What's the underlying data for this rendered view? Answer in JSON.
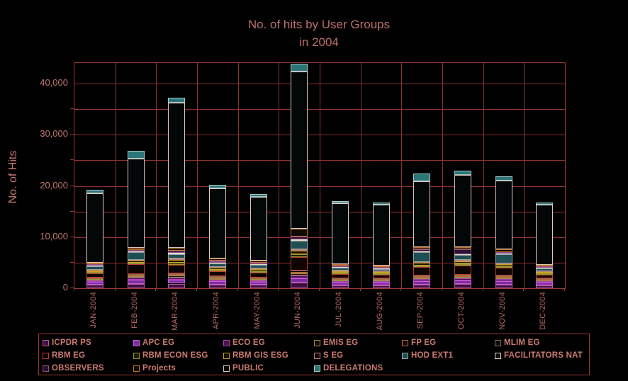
{
  "window": {
    "background": "#000000"
  },
  "title": {
    "line1": "No. of hits by User Groups",
    "line2": "in 2004"
  },
  "y_axis": {
    "title": "No. of Hits",
    "labeled_ticks": [
      {
        "value": 0,
        "label": "0"
      },
      {
        "value": 10000,
        "label": "10,000"
      },
      {
        "value": 20000,
        "label": "20,000"
      },
      {
        "value": 30000,
        "label": "30,000"
      },
      {
        "value": 40000,
        "label": "40,000"
      }
    ],
    "minor_tick_interval": 5000
  },
  "colors": {
    "background": "#000000",
    "grid": "#8f3331",
    "frame": "#9c3a36",
    "axis_text": "#c1766f",
    "title_text": "#bb6f6a",
    "legend_text": "#ca7a70"
  },
  "legend": {
    "columns": 6,
    "position": "bottom"
  },
  "chart_data": {
    "type": "bar",
    "stacked": true,
    "title": "No. of hits by User Groups in 2004",
    "xlabel": "",
    "ylabel": "No. of Hits",
    "ylim": [
      0,
      44000
    ],
    "gridline_interval": 5000,
    "grid": true,
    "legend_position": "bottom",
    "categories": [
      "JAN-2004",
      "FEB-2004",
      "MAR-2004",
      "APR-2004",
      "MAY-2004",
      "JUN-2004",
      "JUL-2004",
      "AUG-2004",
      "SEP-2004",
      "OCT-2004",
      "NOV-2004",
      "DEC-2004"
    ],
    "totals": [
      19200,
      26800,
      37200,
      20200,
      18400,
      43800,
      17000,
      16800,
      22400,
      23000,
      21800,
      16700
    ],
    "series": [
      {
        "name": "ICPDR PS",
        "fill": "#3d1040",
        "border": "#b05898",
        "values": [
          650,
          800,
          900,
          700,
          650,
          1100,
          600,
          600,
          750,
          800,
          750,
          600
        ]
      },
      {
        "name": "APC EG",
        "fill": "#7d2ea0",
        "border": "#c95fd6",
        "values": [
          550,
          900,
          800,
          650,
          600,
          900,
          550,
          500,
          700,
          750,
          700,
          500
        ]
      },
      {
        "name": "ECO EG",
        "fill": "#4a1150",
        "border": "#aa3fae",
        "values": [
          300,
          350,
          400,
          350,
          300,
          500,
          280,
          270,
          350,
          380,
          350,
          260
        ]
      },
      {
        "name": "EMIS EG",
        "fill": "#151004",
        "border": "#9c8a4a",
        "values": [
          250,
          300,
          350,
          280,
          260,
          400,
          240,
          230,
          300,
          320,
          300,
          220
        ]
      },
      {
        "name": "FP EG",
        "fill": "#120803",
        "border": "#b06a36",
        "values": [
          200,
          250,
          300,
          220,
          200,
          350,
          190,
          180,
          240,
          250,
          230,
          180
        ]
      },
      {
        "name": "MLIM EG",
        "fill": "#0b0b0b",
        "border": "#8a6a62",
        "values": [
          120,
          150,
          200,
          140,
          130,
          250,
          120,
          110,
          150,
          160,
          150,
          110
        ]
      },
      {
        "name": "RBM EG",
        "fill": "#0e0404",
        "border": "#c03a34",
        "values": [
          850,
          1900,
          1600,
          1000,
          950,
          2600,
          800,
          750,
          1700,
          1800,
          1500,
          800
        ]
      },
      {
        "name": "RBM ECON ESG",
        "fill": "#1c1c06",
        "border": "#96962e",
        "values": [
          230,
          300,
          400,
          260,
          240,
          500,
          220,
          210,
          300,
          320,
          300,
          210
        ]
      },
      {
        "name": "RBM GIS ESG",
        "fill": "#181203",
        "border": "#c9a02e",
        "values": [
          320,
          450,
          600,
          380,
          350,
          700,
          300,
          290,
          450,
          480,
          430,
          300
        ]
      },
      {
        "name": "S EG",
        "fill": "#0d0606",
        "border": "#c08070",
        "values": [
          180,
          200,
          250,
          200,
          180,
          300,
          160,
          150,
          200,
          210,
          200,
          150
        ]
      },
      {
        "name": "HOD EXT1",
        "fill": "#1f4e54",
        "border": "#93a5a5",
        "values": [
          600,
          1400,
          900,
          700,
          650,
          1700,
          550,
          500,
          1900,
          1000,
          1700,
          600
        ]
      },
      {
        "name": "FACILITATORS NAT",
        "fill": "#0b0b0b",
        "border": "#e8d8c8",
        "values": [
          130,
          150,
          200,
          150,
          140,
          250,
          120,
          110,
          170,
          180,
          160,
          120
        ]
      },
      {
        "name": "OBSERVERS",
        "fill": "#2c1232",
        "border": "#8e4f86",
        "values": [
          280,
          350,
          450,
          320,
          300,
          600,
          260,
          250,
          380,
          900,
          350,
          250
        ]
      },
      {
        "name": "Projects",
        "fill": "#100a03",
        "border": "#c1742c",
        "values": [
          380,
          450,
          500,
          420,
          400,
          1500,
          350,
          340,
          450,
          480,
          430,
          330
        ]
      },
      {
        "name": "PUBLIC",
        "fill": "#040707",
        "border": "#ddc6c0",
        "values": [
          13560,
          17350,
          28450,
          13730,
          12550,
          30700,
          11860,
          11810,
          12860,
          14170,
          13450,
          11670
        ]
      },
      {
        "name": "DELEGATIONS",
        "fill": "#2c7578",
        "border": "#a9c6c6",
        "values": [
          600,
          1500,
          900,
          700,
          500,
          1450,
          400,
          500,
          1500,
          800,
          800,
          400
        ]
      }
    ]
  }
}
